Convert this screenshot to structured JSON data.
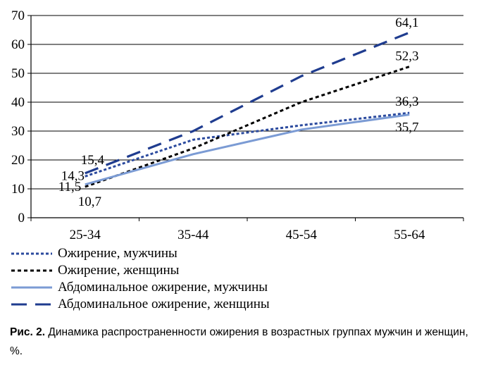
{
  "chart_data": {
    "type": "line",
    "categories": [
      "25-34",
      "35-44",
      "45-54",
      "55-64"
    ],
    "ylim": [
      0,
      70
    ],
    "yticks": [
      0,
      10,
      20,
      30,
      40,
      50,
      60,
      70
    ],
    "grid": true,
    "legend_position": "bottom",
    "series": [
      {
        "name": "Ожирение, мужчины",
        "values": [
          14.3,
          27,
          32,
          36.3
        ],
        "color": "#2b4a9e",
        "dash": "dotted",
        "labels": [
          "14,3",
          "",
          "",
          "36,3"
        ]
      },
      {
        "name": "Ожирение, женщины",
        "values": [
          10.7,
          24,
          40,
          52.3
        ],
        "color": "#000000",
        "dash": "dashed",
        "labels": [
          "10,7",
          "",
          "",
          "52,3"
        ]
      },
      {
        "name": "Абдоминальное ожирение, мужчины",
        "values": [
          11.5,
          22,
          30.5,
          35.7
        ],
        "color": "#7b9bd4",
        "dash": "solid",
        "labels": [
          "11,5",
          "",
          "",
          "35,7"
        ]
      },
      {
        "name": "Абдоминальное ожирение, женщины",
        "values": [
          15.4,
          30,
          49,
          64.1
        ],
        "color": "#1f3c8f",
        "dash": "longdash",
        "labels": [
          "15,4",
          "",
          "",
          "64,1"
        ]
      }
    ]
  },
  "caption": {
    "label": "Рис. 2.",
    "text": " Динамика распространенности ожирения в возрастных группах мужчин и женщин, %."
  }
}
